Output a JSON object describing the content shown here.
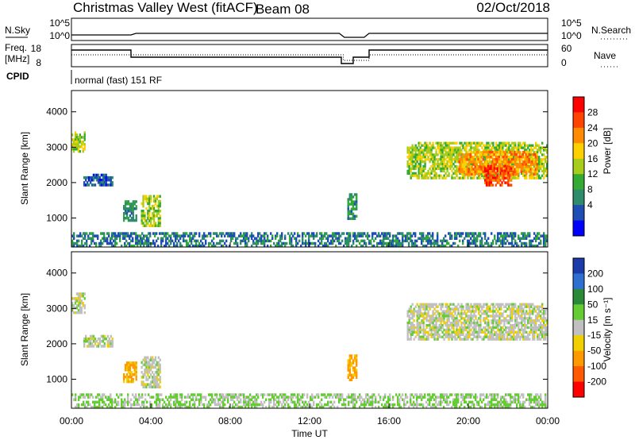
{
  "header": {
    "station": "Christmas Valley West (fitACF)",
    "beam": "Beam 08",
    "date": "02/Oct/2018"
  },
  "panels": {
    "nsky": {
      "label": "N.Sky",
      "right_label": "N.Search",
      "left_ticks": [
        "10^5",
        "10^0"
      ],
      "right_ticks": [
        "10^5",
        "10^0"
      ]
    },
    "freq": {
      "label_line1": "Freq.",
      "label_line2": "[MHz]",
      "right_label": "Nave",
      "left_ticks": [
        "18",
        "8"
      ],
      "right_ticks": [
        "60",
        "0"
      ]
    },
    "cpid": {
      "label": "CPID",
      "text": "normal (fast) 151 RF"
    },
    "power": {
      "ylabel": "Slant Range [km]",
      "cbar_label": "Power [dB]",
      "cbar_ticks": [
        "28",
        "24",
        "20",
        "16",
        "12",
        "8",
        "4"
      ],
      "cbar_colors": [
        "#ff0000",
        "#ff4400",
        "#ff8c00",
        "#ffd000",
        "#a8cc1a",
        "#33aa33",
        "#2e8b6b",
        "#1e4db4",
        "#0000ff"
      ]
    },
    "velocity": {
      "ylabel": "Slant Range [km]",
      "cbar_label": "Velocity [m s⁻¹]",
      "cbar_ticks": [
        "200",
        "100",
        "50",
        "15",
        "-15",
        "-50",
        "-100",
        "-200"
      ],
      "cbar_colors": [
        "#1a3ca8",
        "#2e6fd0",
        "#2a8a3a",
        "#66cc33",
        "#c0c0c0",
        "#f0d000",
        "#ff9900",
        "#ff5a00",
        "#ff0000"
      ]
    }
  },
  "xaxis": {
    "label": "Time UT",
    "ticks": [
      "00:00",
      "04:00",
      "08:00",
      "12:00",
      "16:00",
      "20:00",
      "00:00"
    ]
  },
  "chart_data": [
    {
      "type": "heatmap",
      "name": "Power",
      "xlabel": "Time UT",
      "ylabel": "Slant Range [km]",
      "x_range_hours": [
        0,
        24
      ],
      "y_range_km": [
        180,
        4600
      ],
      "y_ticks": [
        1000,
        2000,
        3000,
        4000
      ],
      "colorbar": {
        "label": "Power [dB]",
        "min": 0,
        "max": 32,
        "ticks": [
          4,
          8,
          12,
          16,
          20,
          24,
          28
        ]
      },
      "regions": [
        {
          "t0": 0.0,
          "t1": 0.7,
          "r0": 2850,
          "r1": 3450,
          "value": 16
        },
        {
          "t0": 0.6,
          "t1": 2.1,
          "r0": 1900,
          "r1": 2250,
          "value": 6
        },
        {
          "t0": 2.6,
          "t1": 3.3,
          "r0": 900,
          "r1": 1500,
          "value": 10
        },
        {
          "t0": 3.5,
          "t1": 4.5,
          "r0": 750,
          "r1": 1650,
          "value": 16
        },
        {
          "t0": 13.9,
          "t1": 14.4,
          "r0": 950,
          "r1": 1700,
          "value": 10
        },
        {
          "t0": 16.9,
          "t1": 24.0,
          "r0": 2100,
          "r1": 3150,
          "value": 16
        },
        {
          "t0": 19.5,
          "t1": 23.5,
          "r0": 2200,
          "r1": 2900,
          "value": 23
        },
        {
          "t0": 20.8,
          "t1": 22.2,
          "r0": 1900,
          "r1": 2500,
          "value": 27
        },
        {
          "t0": 0.0,
          "t1": 24.0,
          "r0": 180,
          "r1": 600,
          "value": 8
        }
      ]
    },
    {
      "type": "heatmap",
      "name": "Velocity",
      "xlabel": "Time UT",
      "ylabel": "Slant Range [km]",
      "x_range_hours": [
        0,
        24
      ],
      "y_range_km": [
        180,
        4600
      ],
      "y_ticks": [
        1000,
        2000,
        3000,
        4000
      ],
      "colorbar": {
        "label": "Velocity [m s⁻¹]",
        "ticks": [
          200,
          100,
          50,
          15,
          -15,
          -50,
          -100,
          -200
        ]
      },
      "regions": [
        {
          "t0": 0.0,
          "t1": 0.7,
          "r0": 2850,
          "r1": 3450,
          "value": 0
        },
        {
          "t0": 0.6,
          "t1": 2.1,
          "r0": 1900,
          "r1": 2250,
          "value": 0
        },
        {
          "t0": 2.6,
          "t1": 3.3,
          "r0": 900,
          "r1": 1500,
          "value": -60
        },
        {
          "t0": 3.5,
          "t1": 4.5,
          "r0": 750,
          "r1": 1650,
          "value": 0
        },
        {
          "t0": 13.9,
          "t1": 14.4,
          "r0": 950,
          "r1": 1700,
          "value": -60
        },
        {
          "t0": 16.9,
          "t1": 24.0,
          "r0": 2100,
          "r1": 3150,
          "value": 0
        },
        {
          "t0": 0.0,
          "t1": 24.0,
          "r0": 180,
          "r1": 600,
          "value": 20
        }
      ]
    }
  ]
}
